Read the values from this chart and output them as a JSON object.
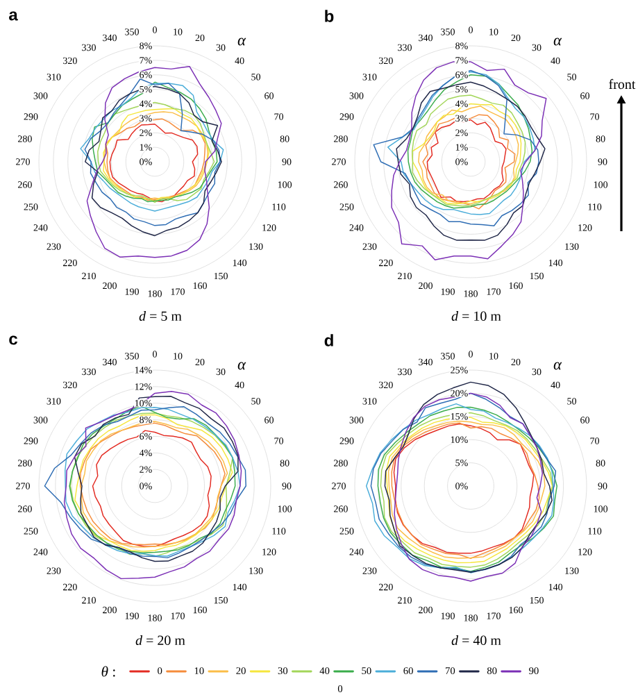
{
  "chart_data": [
    {
      "type": "radar",
      "title": "a",
      "xlabel": "*d* = 5 m",
      "annotations": [
        "α"
      ],
      "grid": true,
      "ylim": [
        0,
        8
      ],
      "yticks": [
        {
          "value": 0,
          "label": "0%"
        },
        {
          "value": 1,
          "label": "1%"
        },
        {
          "value": 2,
          "label": "2%"
        },
        {
          "value": 3,
          "label": "3%"
        },
        {
          "value": 4,
          "label": "4%"
        },
        {
          "value": 5,
          "label": "5%"
        },
        {
          "value": 6,
          "label": "6%"
        },
        {
          "value": 7,
          "label": "7%"
        },
        {
          "value": 8,
          "label": "8%"
        }
      ],
      "categories": [
        "0",
        "10",
        "20",
        "30",
        "40",
        "50",
        "60",
        "70",
        "80",
        "90",
        "100",
        "110",
        "120",
        "130",
        "140",
        "150",
        "160",
        "170",
        "180",
        "190",
        "200",
        "210",
        "220",
        "230",
        "240",
        "250",
        "260",
        "270",
        "280",
        "290",
        "300",
        "310",
        "320",
        "330",
        "340",
        "350"
      ],
      "series": [
        {
          "color": "#e32b22",
          "values": [
            2.6,
            2.3,
            2.1,
            2.3,
            2.4,
            2.6,
            3.0,
            3.1,
            3.0,
            2.6,
            2.8,
            2.9,
            2.6,
            2.6,
            2.6,
            2.7,
            2.7,
            2.8,
            2.7,
            2.5,
            2.4,
            2.5,
            2.6,
            2.7,
            2.9,
            3.1,
            3.1,
            3.1,
            3.0,
            2.9,
            3.0,
            2.4,
            2.5,
            2.6,
            2.7,
            2.6
          ]
        },
        {
          "color": "#f58c3b",
          "values": [
            2.9,
            3.0,
            2.9,
            2.8,
            2.8,
            3.4,
            3.7,
            3.7,
            3.5,
            3.4,
            3.3,
            3.2,
            3.2,
            3.0,
            2.8,
            2.7,
            2.6,
            2.6,
            2.6,
            2.7,
            2.6,
            2.8,
            2.8,
            2.9,
            3.1,
            3.3,
            3.3,
            3.3,
            3.3,
            3.6,
            3.4,
            3.1,
            3.0,
            2.8,
            2.9,
            2.9
          ]
        },
        {
          "color": "#fbbd48",
          "values": [
            3.4,
            3.5,
            3.6,
            3.6,
            3.7,
            3.8,
            3.8,
            3.8,
            3.7,
            3.6,
            3.5,
            3.4,
            3.3,
            3.1,
            2.9,
            2.8,
            2.7,
            2.6,
            2.5,
            2.6,
            2.7,
            2.8,
            2.9,
            3.0,
            3.1,
            3.3,
            3.4,
            3.5,
            3.5,
            3.6,
            3.4,
            3.3,
            3.3,
            3.3,
            3.3,
            3.3
          ]
        },
        {
          "color": "#f5e63d",
          "values": [
            3.6,
            3.7,
            3.9,
            3.8,
            3.9,
            3.8,
            3.7,
            3.8,
            3.8,
            3.6,
            3.4,
            3.3,
            3.2,
            3.0,
            2.9,
            2.8,
            2.6,
            2.5,
            2.7,
            2.6,
            2.7,
            2.8,
            2.9,
            3.0,
            3.2,
            3.4,
            3.6,
            3.5,
            3.6,
            3.5,
            3.4,
            3.2,
            3.5,
            3.7,
            3.6,
            3.6
          ]
        },
        {
          "color": "#a3d65a",
          "values": [
            4.1,
            4.0,
            3.9,
            4.1,
            4.2,
            4.1,
            3.9,
            3.8,
            3.9,
            4.1,
            3.8,
            3.6,
            3.7,
            3.5,
            3.4,
            3.1,
            2.7,
            2.6,
            2.8,
            2.6,
            2.5,
            2.7,
            2.9,
            3.1,
            3.3,
            3.5,
            3.8,
            3.9,
            4.0,
            4.0,
            4.0,
            4.2,
            4.3,
            4.1,
            4.0,
            4.0
          ]
        },
        {
          "color": "#3aac4b",
          "values": [
            5.5,
            5.2,
            5.1,
            5.0,
            4.8,
            4.6,
            4.3,
            4.2,
            4.3,
            4.3,
            3.9,
            3.7,
            3.6,
            3.3,
            3.0,
            2.8,
            2.8,
            2.7,
            2.7,
            2.8,
            2.7,
            2.9,
            3.1,
            3.3,
            3.4,
            3.6,
            4.0,
            4.1,
            4.3,
            4.6,
            4.8,
            4.2,
            4.3,
            4.5,
            4.6,
            4.8
          ]
        },
        {
          "color": "#4badd9",
          "values": [
            5.4,
            5.5,
            5.6,
            5.3,
            4.5,
            4.3,
            4.2,
            4.3,
            4.8,
            4.5,
            4.0,
            3.9,
            3.8,
            3.8,
            3.6,
            3.4,
            3.3,
            3.3,
            3.4,
            3.3,
            3.3,
            3.3,
            3.3,
            3.4,
            3.6,
            3.8,
            4.2,
            4.4,
            5.2,
            4.8,
            4.7,
            4.6,
            4.6,
            4.5,
            4.7,
            5.2
          ]
        },
        {
          "color": "#2e6db4",
          "values": [
            5.3,
            5.5,
            5.0,
            3.8,
            2.8,
            3.2,
            3.8,
            4.3,
            4.5,
            4.5,
            4.2,
            4.4,
            4.3,
            4.4,
            4.6,
            4.3,
            4.2,
            4.4,
            4.4,
            4.2,
            4.2,
            4.0,
            4.1,
            4.0,
            4.2,
            4.3,
            4.5,
            4.4,
            4.9,
            4.7,
            4.3,
            4.2,
            4.4,
            4.6,
            5.0,
            5.8
          ]
        },
        {
          "color": "#1f2647",
          "values": [
            5.2,
            5.1,
            5.0,
            4.7,
            4.2,
            4.3,
            5.0,
            4.2,
            4.4,
            4.6,
            4.3,
            4.1,
            4.0,
            4.4,
            4.6,
            4.7,
            4.8,
            4.8,
            5.1,
            4.9,
            4.7,
            4.5,
            4.6,
            4.9,
            5.0,
            4.5,
            4.0,
            4.8,
            4.6,
            4.1,
            4.3,
            4.7,
            4.6,
            4.9,
            5.0,
            5.1
          ]
        },
        {
          "color": "#7b2fb5",
          "values": [
            6.5,
            6.5,
            7.0,
            6.2,
            5.8,
            5.5,
            5.3,
            4.6,
            4.2,
            3.5,
            3.5,
            3.8,
            4.2,
            4.9,
            5.6,
            6.2,
            6.5,
            6.6,
            6.6,
            6.6,
            7.0,
            6.9,
            6.3,
            5.8,
            5.4,
            4.6,
            4.1,
            3.6,
            3.4,
            3.6,
            3.7,
            4.5,
            5.3,
            5.9,
            6.1,
            6.3
          ]
        }
      ]
    },
    {
      "type": "radar",
      "title": "b",
      "xlabel": "*d* = 10 m",
      "annotations": [
        "α",
        "front"
      ],
      "grid": true,
      "ylim": [
        0,
        8
      ],
      "yticks": [
        {
          "value": 0,
          "label": "0%"
        },
        {
          "value": 1,
          "label": "1%"
        },
        {
          "value": 2,
          "label": "2%"
        },
        {
          "value": 3,
          "label": "3%"
        },
        {
          "value": 4,
          "label": "4%"
        },
        {
          "value": 5,
          "label": "5%"
        },
        {
          "value": 6,
          "label": "6%"
        },
        {
          "value": 7,
          "label": "7%"
        },
        {
          "value": 8,
          "label": "8%"
        }
      ],
      "categories": [
        "0",
        "10",
        "20",
        "30",
        "40",
        "50",
        "60",
        "70",
        "80",
        "90",
        "100",
        "110",
        "120",
        "130",
        "140",
        "150",
        "160",
        "170",
        "180",
        "190",
        "200",
        "210",
        "220",
        "230",
        "240",
        "250",
        "260",
        "270",
        "280",
        "290",
        "300",
        "310",
        "320",
        "330",
        "340",
        "350"
      ],
      "series": [
        {
          "color": "#e32b22",
          "values": [
            2.9,
            2.6,
            2.9,
            2.7,
            2.4,
            2.2,
            2.5,
            2.6,
            2.4,
            2.3,
            2.2,
            2.3,
            2.6,
            2.6,
            2.5,
            2.6,
            2.7,
            2.6,
            2.7,
            2.8,
            2.9,
            2.8,
            3.2,
            3.0,
            2.9,
            2.9,
            3.0,
            3.0,
            2.7,
            2.9,
            2.6,
            3.2,
            3.1,
            2.9,
            3.0,
            2.8
          ]
        },
        {
          "color": "#f58c3b",
          "values": [
            3.0,
            3.3,
            3.4,
            3.2,
            3.0,
            2.6,
            3.0,
            2.7,
            3.1,
            3.0,
            2.4,
            2.6,
            2.8,
            2.7,
            2.6,
            2.8,
            3.0,
            3.3,
            3.0,
            2.9,
            2.9,
            3.1,
            3.3,
            3.3,
            3.2,
            3.2,
            3.1,
            3.3,
            3.0,
            3.3,
            3.2,
            3.2,
            3.4,
            3.2,
            3.2,
            3.0
          ]
        },
        {
          "color": "#fbbd48",
          "values": [
            3.7,
            3.9,
            3.7,
            3.7,
            3.8,
            3.7,
            3.6,
            3.5,
            3.3,
            3.1,
            3.0,
            3.2,
            3.2,
            3.1,
            2.9,
            2.8,
            2.8,
            2.8,
            2.9,
            2.9,
            3.0,
            3.1,
            3.0,
            3.4,
            3.5,
            3.5,
            3.4,
            3.6,
            3.6,
            3.4,
            3.5,
            3.5,
            3.6,
            3.6,
            3.8,
            3.5
          ]
        },
        {
          "color": "#f5e63d",
          "values": [
            4.0,
            4.0,
            4.2,
            4.0,
            4.1,
            4.0,
            3.9,
            3.7,
            3.5,
            3.4,
            3.2,
            3.3,
            3.2,
            3.0,
            3.0,
            2.9,
            2.8,
            2.8,
            2.7,
            2.9,
            3.1,
            3.3,
            3.3,
            3.5,
            3.6,
            3.6,
            3.7,
            4.0,
            4.1,
            3.5,
            3.3,
            3.3,
            3.6,
            3.7,
            3.5,
            3.8
          ]
        },
        {
          "color": "#a3d65a",
          "values": [
            4.6,
            4.4,
            4.3,
            4.5,
            4.4,
            4.2,
            4.1,
            4.0,
            3.8,
            3.6,
            3.4,
            3.4,
            3.1,
            3.0,
            2.9,
            2.8,
            2.8,
            2.9,
            3.0,
            3.1,
            3.2,
            3.4,
            3.4,
            3.5,
            3.7,
            3.9,
            4.1,
            4.0,
            4.1,
            4.2,
            4.3,
            4.0,
            4.3,
            4.4,
            4.6,
            4.6
          ]
        },
        {
          "color": "#3aac4b",
          "values": [
            6.0,
            6.0,
            5.7,
            5.3,
            5.1,
            4.8,
            4.6,
            4.4,
            4.3,
            4.1,
            3.8,
            3.5,
            3.3,
            3.2,
            3.1,
            3.1,
            3.1,
            3.0,
            3.1,
            3.2,
            3.4,
            3.5,
            3.6,
            3.7,
            3.9,
            4.1,
            4.2,
            4.3,
            4.4,
            4.4,
            4.6,
            4.5,
            4.6,
            4.9,
            5.3,
            5.6
          ]
        },
        {
          "color": "#4badd9",
          "values": [
            6.2,
            6.1,
            5.7,
            5.1,
            4.8,
            4.8,
            4.7,
            4.6,
            4.5,
            3.7,
            3.6,
            3.6,
            3.6,
            3.6,
            3.5,
            3.6,
            3.8,
            3.7,
            3.6,
            3.5,
            3.5,
            3.8,
            4.0,
            4.1,
            4.2,
            4.4,
            4.7,
            4.8,
            5.8,
            5.0,
            4.5,
            4.6,
            4.8,
            5.2,
            5.6,
            6.0
          ]
        },
        {
          "color": "#2e6db4",
          "values": [
            6.3,
            6.0,
            5.6,
            5.0,
            3.7,
            3.0,
            3.7,
            4.4,
            4.7,
            4.7,
            4.6,
            4.2,
            4.6,
            4.5,
            4.4,
            4.3,
            4.7,
            4.4,
            4.3,
            4.2,
            4.4,
            4.2,
            4.3,
            4.5,
            4.4,
            4.4,
            4.6,
            6.2,
            6.8,
            5.0,
            4.6,
            4.7,
            4.9,
            5.3,
            5.6,
            6.0
          ]
        },
        {
          "color": "#1f2647",
          "values": [
            5.5,
            5.3,
            5.1,
            5.0,
            5.0,
            4.9,
            4.8,
            4.9,
            5.2,
            4.8,
            4.5,
            4.3,
            4.4,
            4.7,
            4.6,
            5.0,
            5.4,
            5.5,
            5.4,
            5.5,
            5.4,
            5.1,
            4.8,
            4.9,
            4.8,
            4.5,
            4.9,
            5.0,
            5.2,
            4.7,
            4.6,
            4.8,
            5.3,
            5.6,
            5.4,
            5.4
          ]
        },
        {
          "color": "#7b2fb5",
          "values": [
            6.9,
            6.4,
            6.8,
            6.1,
            6.2,
            6.8,
            5.7,
            5.2,
            4.5,
            3.8,
            3.5,
            3.8,
            4.2,
            4.7,
            5.4,
            5.8,
            6.2,
            6.8,
            6.5,
            6.6,
            7.2,
            6.7,
            7.4,
            6.5,
            6.3,
            5.8,
            5.4,
            4.9,
            4.5,
            4.5,
            4.7,
            5.3,
            5.9,
            6.5,
            6.9,
            7.0
          ]
        }
      ]
    },
    {
      "type": "radar",
      "title": "c",
      "xlabel": "*d* = 20 m",
      "annotations": [
        "α"
      ],
      "grid": true,
      "ylim": [
        0,
        14
      ],
      "yticks": [
        {
          "value": 0,
          "label": "0%"
        },
        {
          "value": 2,
          "label": "2%"
        },
        {
          "value": 4,
          "label": "4%"
        },
        {
          "value": 6,
          "label": "6%"
        },
        {
          "value": 8,
          "label": "8%"
        },
        {
          "value": 10,
          "label": "10%"
        },
        {
          "value": 12,
          "label": "12%"
        },
        {
          "value": 14,
          "label": "14%"
        }
      ],
      "categories": [
        "0",
        "10",
        "20",
        "30",
        "40",
        "50",
        "60",
        "70",
        "80",
        "90",
        "100",
        "110",
        "120",
        "130",
        "140",
        "150",
        "160",
        "170",
        "180",
        "190",
        "200",
        "210",
        "220",
        "230",
        "240",
        "250",
        "260",
        "270",
        "280",
        "290",
        "300",
        "310",
        "320",
        "330",
        "340",
        "350"
      ],
      "series": [
        {
          "color": "#e32b22",
          "values": [
            6.5,
            6.2,
            6.4,
            6.7,
            6.9,
            6.5,
            6.4,
            6.8,
            6.9,
            6.7,
            6.5,
            7.0,
            7.3,
            7.3,
            7.1,
            6.9,
            6.8,
            7.0,
            7.3,
            7.4,
            7.5,
            7.6,
            7.3,
            7.2,
            7.2,
            7.0,
            7.3,
            7.5,
            7.0,
            7.5,
            7.4,
            7.0,
            6.7,
            6.5,
            6.3,
            6.8
          ]
        },
        {
          "color": "#f58c3b",
          "values": [
            7.6,
            7.4,
            7.2,
            7.3,
            7.9,
            8.0,
            8.3,
            8.5,
            8.6,
            8.0,
            7.8,
            7.8,
            8.0,
            7.9,
            7.6,
            7.5,
            7.3,
            7.2,
            7.0,
            7.2,
            7.5,
            8.0,
            8.3,
            8.4,
            8.6,
            8.7,
            8.8,
            9.0,
            9.1,
            9.0,
            8.9,
            8.4,
            8.0,
            7.8,
            7.6,
            7.5
          ]
        },
        {
          "color": "#fbbd48",
          "values": [
            7.8,
            7.6,
            7.5,
            7.9,
            8.1,
            8.4,
            8.6,
            8.8,
            8.9,
            8.0,
            7.7,
            7.9,
            7.8,
            7.6,
            7.6,
            7.4,
            7.3,
            7.3,
            7.3,
            7.5,
            7.8,
            8.1,
            8.6,
            8.8,
            9.0,
            9.2,
            9.0,
            8.9,
            8.6,
            8.8,
            8.6,
            8.5,
            8.2,
            7.8,
            7.7,
            7.8
          ]
        },
        {
          "color": "#f5e63d",
          "values": [
            8.6,
            8.3,
            7.9,
            8.2,
            8.8,
            9.1,
            9.3,
            9.4,
            9.5,
            8.6,
            8.2,
            8.2,
            8.0,
            7.8,
            7.7,
            7.6,
            7.6,
            7.5,
            7.8,
            8.0,
            8.3,
            8.4,
            8.6,
            9.3,
            9.5,
            9.4,
            9.8,
            9.4,
            9.2,
            9.2,
            9.0,
            8.9,
            8.7,
            8.4,
            8.5,
            8.7
          ]
        },
        {
          "color": "#a3d65a",
          "values": [
            8.8,
            8.6,
            8.8,
            9.0,
            9.2,
            9.5,
            9.7,
            10.0,
            9.2,
            8.6,
            8.8,
            9.2,
            9.5,
            9.0,
            8.5,
            8.2,
            8.0,
            8.2,
            8.5,
            8.3,
            8.8,
            8.7,
            9.0,
            9.4,
            9.6,
            9.8,
            10.0,
            10.2,
            10.1,
            10.0,
            9.7,
            9.5,
            9.3,
            9.2,
            9.0,
            8.9
          ]
        },
        {
          "color": "#3aac4b",
          "values": [
            8.9,
            8.4,
            8.6,
            9.4,
            9.6,
            9.6,
            9.8,
            10.0,
            9.8,
            9.7,
            9.3,
            9.0,
            9.1,
            8.9,
            8.3,
            8.3,
            8.2,
            8.0,
            8.0,
            8.2,
            8.4,
            8.8,
            9.0,
            9.2,
            9.4,
            9.8,
            10.1,
            10.3,
            10.1,
            9.9,
            10.0,
            9.8,
            9.5,
            9.4,
            9.6,
            9.8
          ]
        },
        {
          "color": "#4badd9",
          "values": [
            9.5,
            9.4,
            9.2,
            9.3,
            9.4,
            9.6,
            9.9,
            10.0,
            10.2,
            10.3,
            9.8,
            9.4,
            9.8,
            9.3,
            8.8,
            8.5,
            8.4,
            8.6,
            8.4,
            8.3,
            8.7,
            9.0,
            9.3,
            9.7,
            10.0,
            10.6,
            10.9,
            10.8,
            11.0,
            11.3,
            10.9,
            10.7,
            10.2,
            9.9,
            9.5,
            9.6
          ]
        },
        {
          "color": "#2e6db4",
          "values": [
            9.2,
            9.6,
            10.2,
            10.0,
            9.9,
            10.2,
            10.4,
            10.6,
            11.1,
            11.0,
            10.0,
            9.7,
            9.3,
            8.8,
            8.6,
            8.5,
            8.6,
            8.8,
            8.5,
            8.6,
            8.7,
            8.6,
            9.2,
            10.0,
            10.4,
            10.9,
            11.5,
            13.3,
            12.3,
            10.8,
            10.3,
            10.0,
            9.6,
            9.0,
            9.0,
            9.3
          ]
        },
        {
          "color": "#1f2647",
          "values": [
            10.8,
            11.0,
            10.7,
            10.8,
            10.6,
            10.9,
            10.8,
            10.7,
            10.2,
            8.5,
            8.0,
            8.4,
            8.6,
            8.7,
            9.0,
            9.1,
            9.0,
            9.2,
            9.1,
            8.8,
            8.5,
            8.6,
            9.3,
            9.6,
            9.4,
            9.5,
            9.1,
            8.8,
            9.4,
            10.3,
            10.2,
            9.4,
            9.7,
            9.5,
            9.2,
            10.8
          ]
        },
        {
          "color": "#7b2fb5",
          "values": [
            11.2,
            11.6,
            11.8,
            11.3,
            11.5,
            11.3,
            11.1,
            10.8,
            10.6,
            10.3,
            10.0,
            10.2,
            10.3,
            10.1,
            10.3,
            10.1,
            10.4,
            10.5,
            11.0,
            11.3,
            11.9,
            11.7,
            11.4,
            11.7,
            11.6,
            11.3,
            11.1,
            10.7,
            10.8,
            10.3,
            9.6,
            10.9,
            10.1,
            9.8,
            9.7,
            10.0
          ]
        }
      ]
    },
    {
      "type": "radar",
      "title": "d",
      "xlabel": "*d* = 40 m",
      "annotations": [
        "α",
        "0"
      ],
      "grid": true,
      "ylim": [
        0,
        25
      ],
      "legend": "bottom",
      "legend_title": "*θ* :",
      "yticks": [
        {
          "value": 0,
          "label": "0%"
        },
        {
          "value": 5,
          "label": "5%"
        },
        {
          "value": 10,
          "label": "10%"
        },
        {
          "value": 15,
          "label": "15%"
        },
        {
          "value": 20,
          "label": "20%"
        },
        {
          "value": 25,
          "label": "25%"
        }
      ],
      "categories": [
        "0",
        "10",
        "20",
        "30",
        "40",
        "50",
        "60",
        "70",
        "80",
        "90",
        "100",
        "110",
        "120",
        "130",
        "140",
        "150",
        "160",
        "170",
        "180",
        "190",
        "200",
        "210",
        "220",
        "230",
        "240",
        "250",
        "260",
        "270",
        "280",
        "290",
        "300",
        "310",
        "320",
        "330",
        "340",
        "350"
      ],
      "series": [
        {
          "name": "0",
          "color": "#e32b22",
          "values": [
            13.0,
            12.6,
            12.2,
            11.5,
            13.0,
            14.0,
            13.5,
            13.3,
            13.8,
            13.3,
            13.0,
            13.5,
            13.8,
            14.5,
            14.6,
            14.3,
            14.0,
            14.2,
            14.5,
            14.7,
            15.2,
            15.3,
            16.2,
            16.5,
            16.8,
            16.8,
            16.5,
            16.2,
            16.8,
            17.2,
            16.5,
            15.6,
            14.6,
            14.0,
            13.8,
            13.6
          ]
        },
        {
          "name": "10",
          "color": "#f58c3b",
          "values": [
            12.5,
            13.0,
            13.2,
            13.0,
            13.5,
            14.0,
            14.0,
            13.6,
            14.0,
            14.5,
            15.0,
            15.0,
            14.6,
            14.8,
            14.6,
            14.5,
            14.5,
            14.8,
            15.6,
            15.0,
            15.5,
            15.8,
            16.5,
            16.5,
            16.7,
            16.6,
            16.7,
            17.0,
            17.3,
            17.5,
            17.0,
            16.0,
            15.2,
            14.5,
            14.2,
            13.8
          ]
        },
        {
          "name": "20",
          "color": "#fbbd48",
          "values": [
            13.8,
            13.5,
            14.0,
            14.5,
            14.5,
            14.3,
            14.8,
            15.5,
            16.0,
            16.0,
            15.5,
            15.4,
            15.4,
            15.0,
            14.7,
            15.0,
            15.0,
            15.5,
            15.5,
            15.8,
            16.3,
            16.5,
            17.0,
            17.5,
            18.2,
            18.0,
            17.5,
            17.6,
            18.0,
            18.0,
            17.2,
            16.5,
            15.8,
            15.0,
            14.6,
            14.2
          ]
        },
        {
          "name": "30",
          "color": "#f5e63d",
          "values": [
            14.8,
            14.0,
            14.5,
            15.0,
            15.2,
            15.5,
            15.6,
            16.2,
            17.0,
            17.6,
            16.8,
            16.5,
            16.0,
            15.6,
            15.4,
            15.6,
            15.8,
            16.5,
            16.5,
            16.8,
            17.0,
            17.3,
            17.8,
            18.5,
            19.0,
            18.6,
            18.0,
            18.0,
            18.5,
            18.6,
            17.6,
            16.8,
            16.3,
            15.8,
            15.3,
            15.0
          ]
        },
        {
          "name": "40",
          "color": "#a3d65a",
          "values": [
            15.8,
            15.4,
            15.0,
            15.2,
            15.6,
            15.8,
            16.0,
            16.5,
            17.4,
            17.7,
            17.0,
            17.2,
            16.8,
            16.3,
            16.0,
            16.3,
            16.8,
            17.3,
            17.5,
            17.6,
            18.0,
            18.0,
            18.8,
            19.0,
            19.7,
            19.8,
            19.0,
            19.4,
            19.5,
            19.4,
            18.3,
            17.5,
            17.0,
            16.5,
            16.0,
            15.8
          ]
        },
        {
          "name": "50",
          "color": "#3aac4b",
          "values": [
            17.0,
            16.6,
            16.3,
            16.0,
            16.0,
            16.3,
            16.8,
            17.4,
            18.0,
            18.6,
            18.4,
            19.0,
            18.2,
            17.5,
            16.8,
            16.8,
            17.5,
            17.8,
            18.4,
            18.0,
            18.6,
            18.6,
            19.5,
            19.6,
            20.0,
            20.0,
            19.8,
            20.0,
            20.2,
            19.8,
            18.8,
            18.0,
            17.5,
            17.5,
            17.2,
            17.2
          ]
        },
        {
          "name": "60",
          "color": "#4badd9",
          "values": [
            16.5,
            16.4,
            15.6,
            15.8,
            16.2,
            16.8,
            17.2,
            17.6,
            17.8,
            17.8,
            18.2,
            18.6,
            18.0,
            17.6,
            17.5,
            17.7,
            18.0,
            18.2,
            18.7,
            17.8,
            18.8,
            19.8,
            20.5,
            20.6,
            21.5,
            22.0,
            21.5,
            22.5,
            21.5,
            20.8,
            19.8,
            19.0,
            18.5,
            17.8,
            17.8,
            18.0
          ]
        },
        {
          "name": "70",
          "color": "#2e6db4",
          "values": [
            20.0,
            19.0,
            18.0,
            17.2,
            17.5,
            16.8,
            17.0,
            17.4,
            18.6,
            18.0,
            17.2,
            17.5,
            17.6,
            17.0,
            16.6,
            17.5,
            18.0,
            18.3,
            18.5,
            18.2,
            18.8,
            19.5,
            20.0,
            20.3,
            20.5,
            21.0,
            20.8,
            21.5,
            21.3,
            20.6,
            19.5,
            19.0,
            18.0,
            19.5,
            19.0,
            19.0
          ]
        },
        {
          "name": "80",
          "color": "#1f2647",
          "values": [
            22.4,
            22.0,
            21.0,
            19.5,
            18.0,
            17.0,
            16.5,
            16.3,
            16.0,
            17.0,
            17.8,
            17.3,
            16.5,
            16.5,
            17.3,
            17.8,
            18.0,
            18.2,
            18.6,
            18.4,
            18.8,
            19.3,
            19.5,
            20.0,
            19.0,
            18.5,
            17.8,
            18.5,
            18.6,
            17.5,
            16.8,
            17.5,
            19.0,
            20.3,
            21.0,
            21.5
          ]
        },
        {
          "name": "90",
          "color": "#7b2fb5",
          "values": [
            20.0,
            19.5,
            18.5,
            17.0,
            17.5,
            16.8,
            16.5,
            16.0,
            15.7,
            15.0,
            14.5,
            16.2,
            16.5,
            17.0,
            17.2,
            19.2,
            20.0,
            19.8,
            20.5,
            20.0,
            20.5,
            20.8,
            20.6,
            19.5,
            18.5,
            17.5,
            16.5,
            16.0,
            16.0,
            16.6,
            17.3,
            18.2,
            19.2,
            19.8,
            19.8,
            19.5
          ]
        }
      ]
    }
  ]
}
